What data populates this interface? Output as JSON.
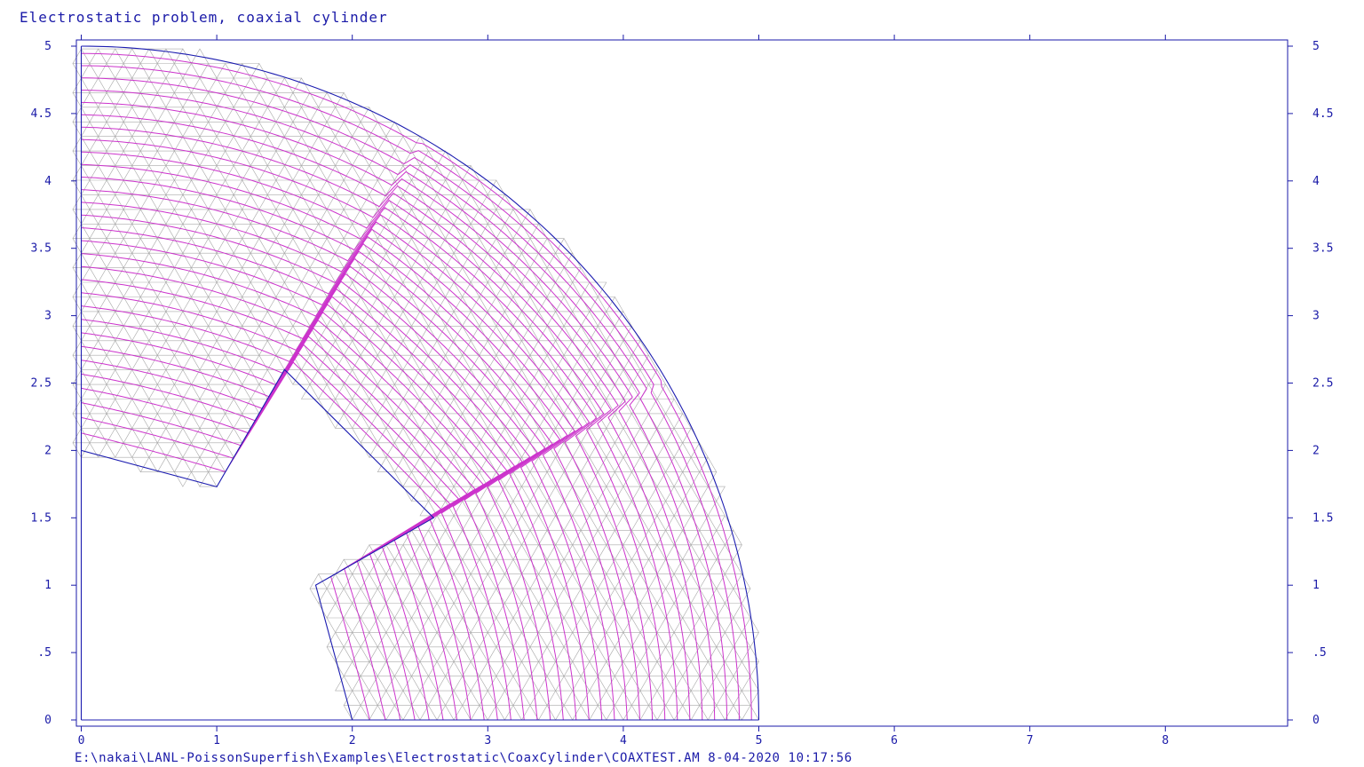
{
  "title": "Electrostatic problem, coaxial cylinder",
  "footer": "E:\\nakai\\LANL-PoissonSuperfish\\Examples\\Electrostatic\\CoaxCylinder\\COAXTEST.AM  8-04-2020  10:17:56",
  "colors": {
    "text": "#1a1aa8",
    "frame": "#1a1aa8",
    "boundary": "#1c1cb0",
    "mesh": "#a9a9a9",
    "field_lines": "#cc33cc"
  },
  "plot": {
    "x_range": [
      0,
      8.9
    ],
    "y_range": [
      0,
      5
    ],
    "x_ticks": [
      {
        "value": 0,
        "label": "0"
      },
      {
        "value": 1,
        "label": "1"
      },
      {
        "value": 2,
        "label": "2"
      },
      {
        "value": 3,
        "label": "3"
      },
      {
        "value": 4,
        "label": "4"
      },
      {
        "value": 5,
        "label": "5"
      },
      {
        "value": 6,
        "label": "6"
      },
      {
        "value": 7,
        "label": "7"
      },
      {
        "value": 8,
        "label": "8"
      }
    ],
    "y_ticks": [
      {
        "value": 0,
        "label": "0"
      },
      {
        "value": 0.5,
        "label": ".5"
      },
      {
        "value": 1,
        "label": "1"
      },
      {
        "value": 1.5,
        "label": "1.5"
      },
      {
        "value": 2,
        "label": "2"
      },
      {
        "value": 2.5,
        "label": "2.5"
      },
      {
        "value": 3,
        "label": "3"
      },
      {
        "value": 3.5,
        "label": "3.5"
      },
      {
        "value": 4,
        "label": "4"
      },
      {
        "value": 4.5,
        "label": "4.5"
      },
      {
        "value": 5,
        "label": "5"
      }
    ],
    "outer_radius": 5,
    "inner_radius": 2,
    "inner_star_vertices": [
      [
        0,
        2
      ],
      [
        1,
        1.73
      ],
      [
        1.5,
        2.6
      ],
      [
        2.6,
        1.5
      ],
      [
        1.73,
        1
      ],
      [
        2,
        0
      ]
    ],
    "field_line_count": 30
  }
}
